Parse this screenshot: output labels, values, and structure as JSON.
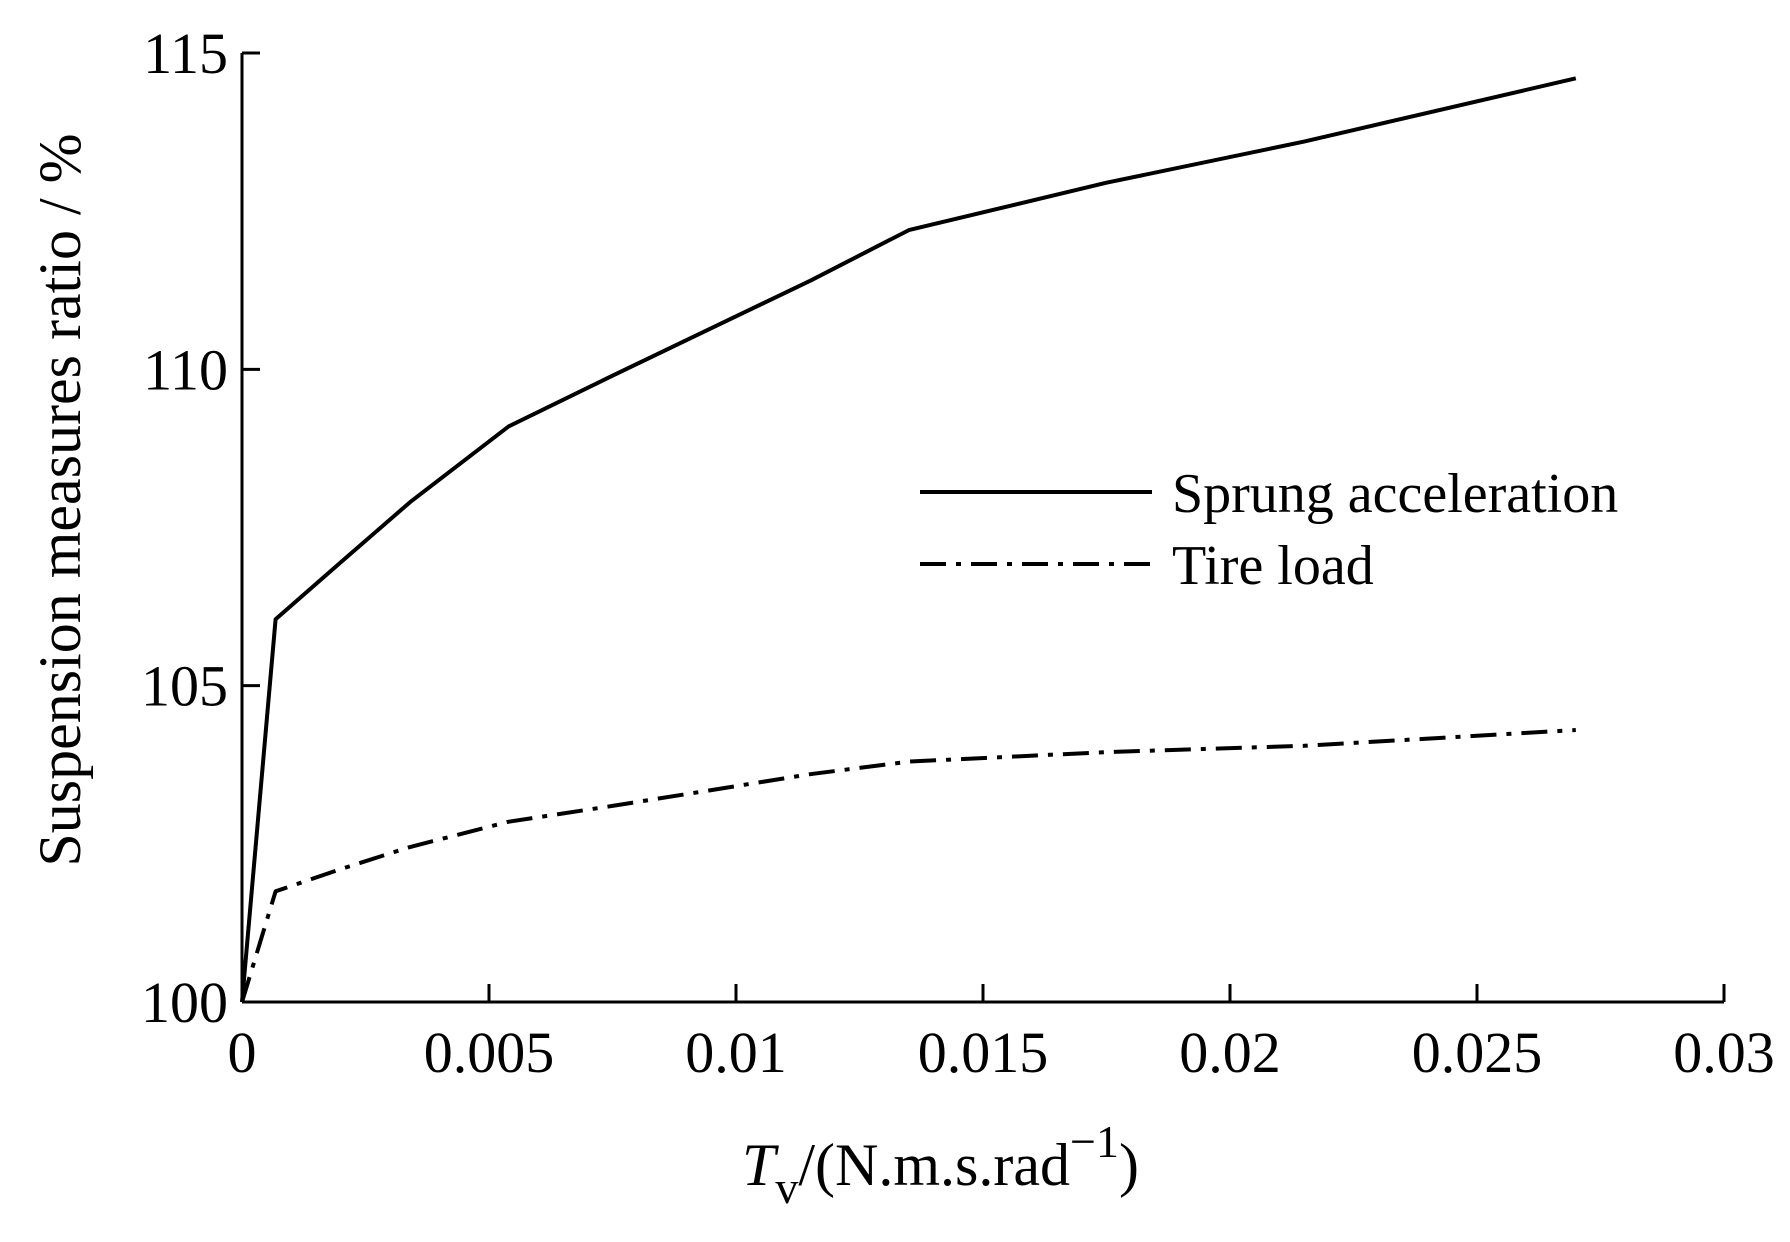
{
  "chart_data": {
    "type": "line",
    "title": "",
    "xlabel_italic": "T",
    "xlabel_sub": "v",
    "xlabel_rest": "/(N.m.s.rad",
    "xlabel_sup": "−1",
    "xlabel_close": ")",
    "ylabel": "Suspension measures ratio / %",
    "xlim": [
      0,
      0.03
    ],
    "ylim": [
      100,
      115
    ],
    "x_ticks": [
      0,
      0.005,
      0.01,
      0.015,
      0.02,
      0.025,
      0.03
    ],
    "x_tick_labels": [
      "0",
      "0.005",
      "0.01",
      "0.015",
      "0.02",
      "0.025",
      "0.03"
    ],
    "y_ticks": [
      100,
      105,
      110,
      115
    ],
    "y_tick_labels": [
      "100",
      "105",
      "110",
      "115"
    ],
    "grid": false,
    "legend_position": "center-right",
    "series": [
      {
        "name": "Sprung acceleration",
        "style": "solid",
        "color": "#000000",
        "x": [
          0,
          0.00068,
          0.002,
          0.0034,
          0.0054,
          0.0075,
          0.0095,
          0.0115,
          0.0135,
          0.0175,
          0.0215,
          0.027
        ],
        "y": [
          100,
          106.05,
          106.95,
          107.9,
          109.1,
          109.9,
          110.65,
          111.4,
          112.2,
          112.95,
          113.6,
          114.6
        ]
      },
      {
        "name": "Tire load",
        "style": "dashdot",
        "color": "#000000",
        "x": [
          0,
          0.00068,
          0.002,
          0.0034,
          0.0054,
          0.0075,
          0.0095,
          0.0115,
          0.0135,
          0.0175,
          0.0215,
          0.027
        ],
        "y": [
          100,
          101.75,
          102.1,
          102.45,
          102.85,
          103.1,
          103.35,
          103.6,
          103.8,
          103.95,
          104.05,
          104.3
        ]
      }
    ]
  }
}
